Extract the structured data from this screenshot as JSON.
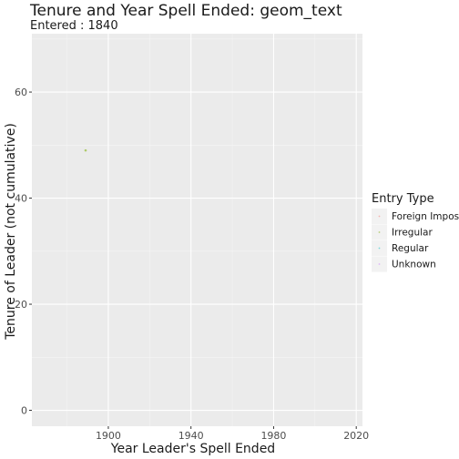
{
  "chart_data": {
    "type": "scatter",
    "title": "Tenure and Year Spell Ended: geom_text",
    "subtitle": "Entered : 1840",
    "xlabel": "Year Leader's Spell Ended",
    "ylabel": "Tenure of Leader (not cumulative)",
    "xlim": [
      1863,
      2023
    ],
    "ylim": [
      -3,
      71
    ],
    "x_ticks": [
      1900,
      1940,
      1980,
      2020
    ],
    "y_ticks": [
      0,
      20,
      40,
      60
    ],
    "x_tick_labels": [
      "1900",
      "1940",
      "1980",
      "2020"
    ],
    "y_tick_labels": [
      "0",
      "20",
      "40",
      "60"
    ],
    "grid": true,
    "legend": {
      "title": "Entry Type",
      "placement": "right",
      "entries": [
        {
          "label": "Foreign Imposi",
          "color": "#F8766D"
        },
        {
          "label": "Irregular",
          "color": "#7CAE00"
        },
        {
          "label": "Regular",
          "color": "#00BFC4"
        },
        {
          "label": "Unknown",
          "color": "#C77CFF"
        }
      ]
    },
    "points": [
      {
        "x": 1889,
        "y": 49,
        "series": "Irregular",
        "color": "#7CAE00"
      }
    ]
  }
}
